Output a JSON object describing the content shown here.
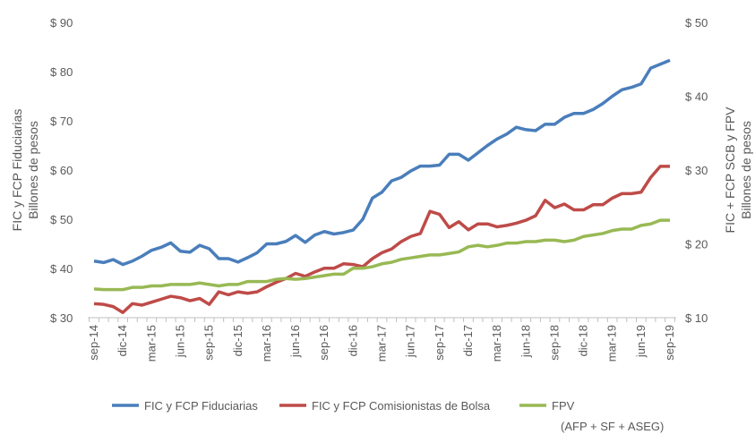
{
  "chart_data": {
    "type": "line",
    "y_title": [
      "FIC y FCP Fiduciarias",
      "Billones de pesos"
    ],
    "y2_title": [
      "FIC + FCP SCB y FPV",
      "Billones de pesos"
    ],
    "categories": [
      "sep-14",
      null,
      null,
      "dic-14",
      null,
      null,
      "mar-15",
      null,
      null,
      "jun-15",
      null,
      null,
      "sep-15",
      null,
      null,
      "dic-15",
      null,
      null,
      "mar-16",
      null,
      null,
      "jun-16",
      null,
      null,
      "sep-16",
      null,
      null,
      "dic-16",
      null,
      null,
      "mar-17",
      null,
      null,
      "jun-17",
      null,
      null,
      "sep-17",
      null,
      null,
      "dic-17",
      null,
      null,
      "mar-18",
      null,
      null,
      "jun-18",
      null,
      null,
      "sep-18",
      null,
      null,
      "dic-18",
      null,
      null,
      "mar-19",
      null,
      null,
      "jun-19",
      null,
      null,
      "sep-19"
    ],
    "series": [
      {
        "name": "FIC y FCP Fiduciarias",
        "color": "#4a7ebb",
        "axis": "y",
        "values": [
          41.5,
          41.2,
          41.8,
          40.8,
          41.5,
          42.5,
          43.7,
          44.3,
          45.2,
          43.5,
          43.3,
          44.7,
          44,
          42,
          42,
          41.3,
          42.2,
          43.2,
          45,
          45,
          45.5,
          46.7,
          45.3,
          46.8,
          47.5,
          47,
          47.3,
          47.8,
          50,
          54.3,
          55.5,
          57.8,
          58.5,
          59.8,
          60.8,
          60.8,
          61,
          63.2,
          63.2,
          62,
          63.5,
          65,
          66.3,
          67.3,
          68.7,
          68.2,
          68,
          69.3,
          69.3,
          70.7,
          71.5,
          71.5,
          72.3,
          73.5,
          75,
          76.3,
          76.8,
          77.5,
          80.7,
          81.5,
          82.3
        ]
      },
      {
        "name": "FIC y FCP Comisionistas de Bolsa",
        "color": "#be4b48",
        "axis": "y2",
        "values": [
          11.9,
          11.8,
          11.5,
          10.7,
          11.9,
          11.7,
          12.1,
          12.5,
          12.9,
          12.7,
          12.3,
          12.6,
          11.8,
          13.5,
          13.1,
          13.5,
          13.3,
          13.5,
          14.2,
          14.8,
          15.3,
          16.0,
          15.6,
          16.2,
          16.7,
          16.7,
          17.3,
          17.2,
          16.9,
          18.0,
          18.8,
          19.3,
          20.3,
          21.0,
          21.4,
          24.4,
          24.0,
          22.2,
          23.0,
          21.9,
          22.7,
          22.7,
          22.3,
          22.5,
          22.8,
          23.2,
          23.8,
          25.9,
          24.9,
          25.4,
          24.6,
          24.6,
          25.3,
          25.3,
          26.2,
          26.8,
          26.8,
          27.0,
          29.0,
          30.5,
          30.5
        ]
      },
      {
        "name": "FPV",
        "color": "#98b954",
        "axis": "y2",
        "legend_note": "(AFP + SF + ASEG)",
        "values": [
          13.9,
          13.8,
          13.8,
          13.8,
          14.1,
          14.1,
          14.3,
          14.3,
          14.5,
          14.5,
          14.5,
          14.7,
          14.5,
          14.3,
          14.5,
          14.5,
          14.9,
          14.9,
          14.9,
          15.2,
          15.3,
          15.2,
          15.3,
          15.5,
          15.7,
          15.9,
          15.9,
          16.7,
          16.7,
          16.9,
          17.3,
          17.5,
          17.9,
          18.1,
          18.3,
          18.5,
          18.5,
          18.7,
          18.9,
          19.6,
          19.8,
          19.6,
          19.8,
          20.1,
          20.1,
          20.3,
          20.3,
          20.5,
          20.5,
          20.3,
          20.5,
          21.0,
          21.2,
          21.4,
          21.8,
          22.0,
          22.0,
          22.5,
          22.7,
          23.2,
          23.2
        ]
      }
    ],
    "ylim": [
      30,
      90
    ],
    "yticks": [
      {
        "value": 30,
        "label": "$ 30"
      },
      {
        "value": 40,
        "label": "$ 40"
      },
      {
        "value": 50,
        "label": "$ 50"
      },
      {
        "value": 60,
        "label": "$ 60"
      },
      {
        "value": 70,
        "label": "$ 70"
      },
      {
        "value": 80,
        "label": "$ 80"
      },
      {
        "value": 90,
        "label": "$ 90"
      }
    ],
    "y2lim": [
      10,
      50
    ],
    "y2ticks": [
      {
        "value": 10,
        "label": "$ 10"
      },
      {
        "value": 20,
        "label": "$ 20"
      },
      {
        "value": 30,
        "label": "$ 30"
      },
      {
        "value": 40,
        "label": "$ 40"
      },
      {
        "value": 50,
        "label": "$ 50"
      }
    ],
    "grid": false,
    "legend": "bottom"
  }
}
